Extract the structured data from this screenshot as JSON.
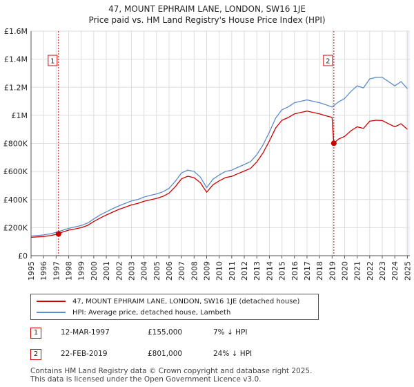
{
  "title": "47, MOUNT EPHRAIM LANE, LONDON, SW16 1JE",
  "subtitle": "Price paid vs. HM Land Registry's House Price Index (HPI)",
  "colors": {
    "hpi": "#5b8ccc",
    "price": "#cc0000",
    "marker": "#cc0000",
    "grid": "#dddddd",
    "shade": "#eef3fb"
  },
  "legend": {
    "price_label": "47, MOUNT EPHRAIM LANE, LONDON, SW16 1JE (detached house)",
    "hpi_label": "HPI: Average price, detached house, Lambeth"
  },
  "sales": [
    {
      "num": "1",
      "date": "12-MAR-1997",
      "price": "£155,000",
      "hpi_diff": "7% ↓ HPI"
    },
    {
      "num": "2",
      "date": "22-FEB-2019",
      "price": "£801,000",
      "hpi_diff": "24% ↓ HPI"
    }
  ],
  "footer": {
    "line1": "Contains HM Land Registry data © Crown copyright and database right 2025.",
    "line2": "This data is licensed under the Open Government Licence v3.0."
  },
  "chart_data": {
    "type": "line",
    "title": "47, MOUNT EPHRAIM LANE, LONDON, SW16 1JE",
    "subtitle": "Price paid vs. HM Land Registry's House Price Index (HPI)",
    "xlabel": "",
    "ylabel": "",
    "xlim": [
      1995,
      2025.2
    ],
    "ylim": [
      0,
      1600000
    ],
    "x_ticks": [
      1995,
      1996,
      1997,
      1998,
      1999,
      2000,
      2001,
      2002,
      2003,
      2004,
      2005,
      2006,
      2007,
      2008,
      2009,
      2010,
      2011,
      2012,
      2013,
      2014,
      2015,
      2016,
      2017,
      2018,
      2019,
      2020,
      2021,
      2022,
      2023,
      2024,
      2025
    ],
    "y_ticks": [
      {
        "value": 0,
        "label": "£0"
      },
      {
        "value": 200000,
        "label": "£200K"
      },
      {
        "value": 400000,
        "label": "£400K"
      },
      {
        "value": 600000,
        "label": "£600K"
      },
      {
        "value": 800000,
        "label": "£800K"
      },
      {
        "value": 1000000,
        "label": "£1M"
      },
      {
        "value": 1200000,
        "label": "£1.2M"
      },
      {
        "value": 1400000,
        "label": "£1.4M"
      },
      {
        "value": 1600000,
        "label": "£1.6M"
      }
    ],
    "grid": true,
    "series": [
      {
        "name": "HPI: Average price, detached house, Lambeth",
        "x": [
          1995,
          1995.5,
          1996,
          1996.5,
          1997,
          1997.5,
          1998,
          1998.5,
          1999,
          1999.5,
          2000,
          2000.5,
          2001,
          2001.5,
          2002,
          2002.5,
          2003,
          2003.5,
          2004,
          2004.5,
          2005,
          2005.5,
          2006,
          2006.5,
          2007,
          2007.5,
          2008,
          2008.5,
          2009,
          2009.5,
          2010,
          2010.5,
          2011,
          2011.5,
          2012,
          2012.5,
          2013,
          2013.5,
          2014,
          2014.5,
          2015,
          2015.5,
          2016,
          2016.5,
          2017,
          2017.5,
          2018,
          2018.5,
          2019,
          2019.5,
          2020,
          2020.5,
          2021,
          2021.5,
          2022,
          2022.5,
          2023,
          2023.5,
          2024,
          2024.5,
          2025
        ],
        "values": [
          140000,
          144000,
          148000,
          155000,
          166000,
          180000,
          195000,
          205000,
          215000,
          232000,
          262000,
          290000,
          312000,
          335000,
          355000,
          372000,
          390000,
          400000,
          418000,
          430000,
          440000,
          455000,
          480000,
          530000,
          590000,
          610000,
          600000,
          560000,
          485000,
          545000,
          575000,
          600000,
          610000,
          630000,
          650000,
          670000,
          720000,
          790000,
          880000,
          980000,
          1040000,
          1060000,
          1090000,
          1100000,
          1110000,
          1100000,
          1090000,
          1075000,
          1060000,
          1095000,
          1120000,
          1170000,
          1210000,
          1195000,
          1260000,
          1270000,
          1270000,
          1240000,
          1210000,
          1240000,
          1190000
        ]
      },
      {
        "name": "47, MOUNT EPHRAIM LANE, LONDON, SW16 1JE (detached house)",
        "x": [
          1995,
          1995.5,
          1996,
          1996.5,
          1997.19,
          1997.5,
          1998,
          1998.5,
          1999,
          1999.5,
          2000,
          2000.5,
          2001,
          2001.5,
          2002,
          2002.5,
          2003,
          2003.5,
          2004,
          2004.5,
          2005,
          2005.5,
          2006,
          2006.5,
          2007,
          2007.5,
          2008,
          2008.5,
          2009,
          2009.5,
          2010,
          2010.5,
          2011,
          2011.5,
          2012,
          2012.5,
          2013,
          2013.5,
          2014,
          2014.5,
          2015,
          2015.5,
          2016,
          2016.5,
          2017,
          2017.5,
          2018,
          2018.5,
          2019,
          2019.14,
          2019.5,
          2020,
          2020.5,
          2021,
          2021.5,
          2022,
          2022.5,
          2023,
          2023.5,
          2024,
          2024.5,
          2025
        ],
        "values": [
          131000,
          134000,
          137000,
          143000,
          155000,
          168000,
          182000,
          190000,
          200000,
          215000,
          243000,
          268000,
          290000,
          310000,
          330000,
          345000,
          362000,
          372000,
          388000,
          398000,
          408000,
          422000,
          446000,
          492000,
          548000,
          566000,
          556000,
          520000,
          452000,
          505000,
          533000,
          557000,
          565000,
          585000,
          603000,
          622000,
          668000,
          733000,
          817000,
          910000,
          965000,
          984000,
          1010000,
          1020000,
          1030000,
          1020000,
          1010000,
          997000,
          985000,
          801000,
          830000,
          850000,
          890000,
          918000,
          907000,
          958000,
          965000,
          963000,
          940000,
          918000,
          940000,
          900000
        ]
      }
    ],
    "sales_markers": [
      {
        "label": "1",
        "x": 1997.19,
        "value": 155000
      },
      {
        "label": "2",
        "x": 2019.14,
        "value": 801000
      }
    ],
    "shaded_region": {
      "from": 2024.9,
      "to": 2025.2
    }
  }
}
